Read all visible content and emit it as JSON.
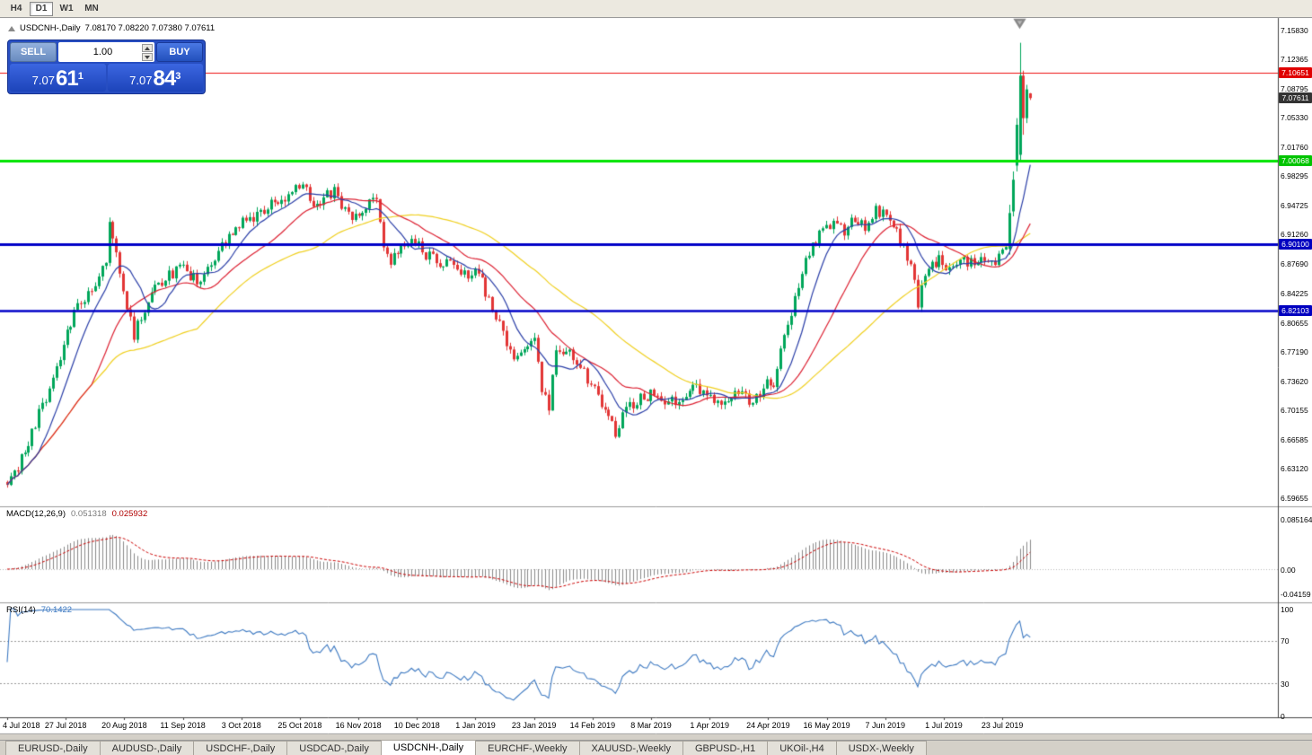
{
  "toolbar": {
    "timeframes": [
      "H4",
      "D1",
      "W1",
      "MN"
    ],
    "active": "D1"
  },
  "chart_header": {
    "symbol": "USDCNH-,Daily",
    "ohlc": "7.08170 7.08220 7.07380 7.07611"
  },
  "trade_panel": {
    "sell_label": "SELL",
    "buy_label": "BUY",
    "volume": "1.00",
    "sell_price": {
      "big_prefix": "7.07",
      "big": "61",
      "sup": "1"
    },
    "buy_price": {
      "big_prefix": "7.07",
      "big": "84",
      "sup": "3"
    }
  },
  "chart_data": {
    "type": "candlestick",
    "symbol": "USDCNH",
    "timeframe": "Daily",
    "colors": {
      "up": "#00a65a",
      "down": "#e23535",
      "bg": "#ffffff"
    },
    "price_axis": {
      "price_top": 7.1583,
      "price_bottom": 6.59655,
      "ticks": [
        "7.15830",
        "7.12365",
        "7.08795",
        "7.05330",
        "7.01760",
        "6.98295",
        "6.94725",
        "6.91260",
        "6.87690",
        "6.84225",
        "6.80655",
        "6.77190",
        "6.73620",
        "6.70155",
        "6.66585",
        "6.63120",
        "6.59655"
      ],
      "tags": [
        {
          "value": "7.10651",
          "price": 7.10651,
          "color": "#e00000"
        },
        {
          "value": "7.07611",
          "price": 7.07611,
          "color": "#333333"
        },
        {
          "value": "7.00068",
          "price": 7.00068,
          "color": "#00c400"
        },
        {
          "value": "6.90100",
          "price": 6.901,
          "color": "#0000c0"
        },
        {
          "value": "6.82103",
          "price": 6.82103,
          "color": "#0000c0"
        }
      ]
    },
    "hlines": [
      {
        "price": 7.10651,
        "color": "#ee1111",
        "width": 1.2
      },
      {
        "price": 7.00068,
        "color": "#00e400",
        "width": 3
      },
      {
        "price": 6.901,
        "color": "#0000c8",
        "width": 3
      },
      {
        "price": 6.82103,
        "color": "#0000c8",
        "width": 2.4
      }
    ],
    "x_labels": [
      "4 Jul 2018",
      "27 Jul 2018",
      "20 Aug 2018",
      "11 Sep 2018",
      "3 Oct 2018",
      "25 Oct 2018",
      "16 Nov 2018",
      "10 Dec 2018",
      "1 Jan 2019",
      "23 Jan 2019",
      "14 Feb 2019",
      "8 Mar 2019",
      "1 Apr 2019",
      "24 Apr 2019",
      "16 May 2019",
      "7 Jun 2019",
      "1 Jul 2019",
      "23 Jul 2019"
    ],
    "label_step_bars": 16.65,
    "bars_total": 292,
    "seed": 77,
    "noise": 0.0075,
    "wick": 0.006,
    "anchors": [
      [
        0,
        6.615
      ],
      [
        3,
        6.635
      ],
      [
        6,
        6.66
      ],
      [
        9,
        6.7
      ],
      [
        13,
        6.735
      ],
      [
        17,
        6.8
      ],
      [
        21,
        6.83
      ],
      [
        25,
        6.85
      ],
      [
        28,
        6.885
      ],
      [
        29,
        6.93
      ],
      [
        31,
        6.885
      ],
      [
        33,
        6.845
      ],
      [
        36,
        6.79
      ],
      [
        38,
        6.815
      ],
      [
        42,
        6.845
      ],
      [
        46,
        6.862
      ],
      [
        50,
        6.872
      ],
      [
        54,
        6.856
      ],
      [
        58,
        6.882
      ],
      [
        62,
        6.902
      ],
      [
        66,
        6.925
      ],
      [
        70,
        6.932
      ],
      [
        74,
        6.947
      ],
      [
        78,
        6.957
      ],
      [
        82,
        6.965
      ],
      [
        84,
        6.976
      ],
      [
        87,
        6.944
      ],
      [
        90,
        6.956
      ],
      [
        93,
        6.962
      ],
      [
        96,
        6.94
      ],
      [
        99,
        6.934
      ],
      [
        102,
        6.946
      ],
      [
        105,
        6.952
      ],
      [
        107,
        6.9
      ],
      [
        109,
        6.878
      ],
      [
        112,
        6.895
      ],
      [
        116,
        6.906
      ],
      [
        119,
        6.888
      ],
      [
        122,
        6.88
      ],
      [
        126,
        6.874
      ],
      [
        130,
        6.868
      ],
      [
        134,
        6.862
      ],
      [
        138,
        6.828
      ],
      [
        141,
        6.79
      ],
      [
        144,
        6.762
      ],
      [
        147,
        6.778
      ],
      [
        150,
        6.788
      ],
      [
        152,
        6.72
      ],
      [
        154,
        6.705
      ],
      [
        156,
        6.768
      ],
      [
        160,
        6.776
      ],
      [
        164,
        6.744
      ],
      [
        168,
        6.718
      ],
      [
        171,
        6.69
      ],
      [
        173,
        6.676
      ],
      [
        176,
        6.7
      ],
      [
        180,
        6.714
      ],
      [
        184,
        6.72
      ],
      [
        188,
        6.708
      ],
      [
        192,
        6.716
      ],
      [
        196,
        6.73
      ],
      [
        200,
        6.718
      ],
      [
        204,
        6.713
      ],
      [
        208,
        6.72
      ],
      [
        212,
        6.708
      ],
      [
        216,
        6.736
      ],
      [
        218,
        6.728
      ],
      [
        220,
        6.772
      ],
      [
        223,
        6.82
      ],
      [
        226,
        6.87
      ],
      [
        229,
        6.9
      ],
      [
        232,
        6.915
      ],
      [
        235,
        6.93
      ],
      [
        238,
        6.918
      ],
      [
        241,
        6.93
      ],
      [
        244,
        6.924
      ],
      [
        247,
        6.944
      ],
      [
        250,
        6.93
      ],
      [
        252,
        6.924
      ],
      [
        255,
        6.9
      ],
      [
        258,
        6.86
      ],
      [
        259,
        6.832
      ],
      [
        262,
        6.868
      ],
      [
        265,
        6.882
      ],
      [
        267,
        6.866
      ],
      [
        270,
        6.878
      ],
      [
        274,
        6.88
      ],
      [
        278,
        6.886
      ],
      [
        281,
        6.878
      ],
      [
        284,
        6.892
      ],
      [
        285,
        6.935
      ],
      [
        286,
        6.976
      ],
      [
        287,
        7.04
      ],
      [
        288,
        7.1
      ],
      [
        289,
        7.05
      ],
      [
        290,
        7.085
      ],
      [
        291,
        7.076
      ]
    ],
    "tail": [
      {
        "i": 285,
        "o": 6.895,
        "h": 6.948,
        "l": 6.888,
        "c": 6.938
      },
      {
        "i": 286,
        "o": 6.94,
        "h": 6.988,
        "l": 6.934,
        "c": 6.978
      },
      {
        "i": 287,
        "o": 6.995,
        "h": 7.052,
        "l": 6.988,
        "c": 7.044
      },
      {
        "i": 288,
        "o": 7.008,
        "h": 7.1425,
        "l": 7.0,
        "c": 7.103
      },
      {
        "i": 289,
        "o": 7.103,
        "h": 7.109,
        "l": 7.032,
        "c": 7.052
      },
      {
        "i": 290,
        "o": 7.052,
        "h": 7.092,
        "l": 7.046,
        "c": 7.0865
      },
      {
        "i": 291,
        "o": 7.0817,
        "h": 7.0822,
        "l": 7.0738,
        "c": 7.07611
      }
    ],
    "ma": [
      {
        "name": "ma-slow",
        "period": 55,
        "color": "#f0d020"
      },
      {
        "name": "ma-mid",
        "period": 25,
        "color": "#dd2233"
      },
      {
        "name": "ma-fast",
        "period": 10,
        "color": "#2b3fa8"
      }
    ],
    "indicators": {
      "macd": {
        "label": "MACD(12,26,9)",
        "value_main": "0.051318",
        "value_signal": "0.025932",
        "fast": 12,
        "slow": 26,
        "signal": 9,
        "max": 0.085164,
        "scale": [
          "0.085164",
          "0.00",
          "-0.04159"
        ],
        "hist_color": "#8a8a8a",
        "signal_color": "#cc0000"
      },
      "rsi": {
        "label": "RSI(14)",
        "value": "70.1422",
        "period": 14,
        "levels": [
          70,
          30
        ],
        "scale": [
          "100",
          "70",
          "30",
          "0"
        ],
        "line_color": "#3e7ac2"
      }
    }
  },
  "tabs": [
    {
      "label": "EURUSD-,Daily"
    },
    {
      "label": "AUDUSD-,Daily"
    },
    {
      "label": "USDCHF-,Daily"
    },
    {
      "label": "USDCAD-,Daily"
    },
    {
      "label": "USDCNH-,Daily",
      "active": true
    },
    {
      "label": "EURCHF-,Weekly"
    },
    {
      "label": "XAUUSD-,Weekly"
    },
    {
      "label": "GBPUSD-,H1"
    },
    {
      "label": "UKOil-,H4"
    },
    {
      "label": "USDX-,Weekly"
    }
  ]
}
